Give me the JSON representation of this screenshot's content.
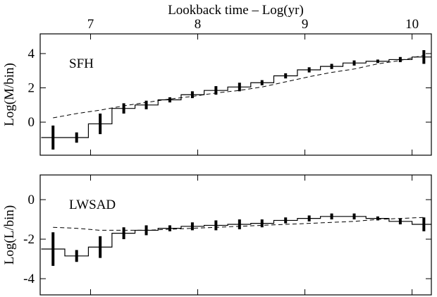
{
  "chart_data": [
    {
      "type": "step",
      "xlabel": "Lookback time – Log(yr)",
      "ylabel": "Log(M/bin)",
      "label": "SFH",
      "x": [
        6.65,
        6.87,
        7.09,
        7.31,
        7.52,
        7.74,
        7.95,
        8.17,
        8.39,
        8.6,
        8.82,
        9.04,
        9.25,
        9.46,
        9.68,
        9.89,
        10.11
      ],
      "values": [
        -0.9,
        -0.9,
        -0.1,
        0.8,
        1.0,
        1.3,
        1.6,
        1.85,
        2.05,
        2.3,
        2.7,
        3.05,
        3.25,
        3.45,
        3.55,
        3.65,
        3.8
      ],
      "errors": [
        0.7,
        0.3,
        0.6,
        0.3,
        0.25,
        0.15,
        0.2,
        0.25,
        0.25,
        0.15,
        0.15,
        0.15,
        0.15,
        0.15,
        0.1,
        0.15,
        0.4
      ],
      "comparison": [
        0.25,
        0.5,
        0.7,
        0.95,
        1.15,
        1.35,
        1.5,
        1.7,
        1.85,
        2.05,
        2.35,
        2.65,
        2.9,
        3.1,
        3.4,
        3.6,
        3.9
      ],
      "xlim": [
        6.53,
        10.18
      ],
      "xticks": [
        7,
        8,
        9,
        10
      ],
      "ylim": [
        -1.93,
        5.15
      ],
      "yticks": [
        0,
        2,
        4
      ]
    },
    {
      "type": "step",
      "ylabel": "Log(L/bin)",
      "label": "LWSAD",
      "x": [
        6.65,
        6.87,
        7.09,
        7.31,
        7.52,
        7.74,
        7.95,
        8.17,
        8.39,
        8.6,
        8.82,
        9.04,
        9.25,
        9.46,
        9.68,
        9.89,
        10.11
      ],
      "values": [
        -2.5,
        -2.85,
        -2.4,
        -1.7,
        -1.55,
        -1.45,
        -1.35,
        -1.3,
        -1.25,
        -1.2,
        -1.05,
        -0.95,
        -0.85,
        -0.85,
        -0.95,
        -1.1,
        -1.25
      ],
      "errors": [
        0.85,
        0.3,
        0.55,
        0.3,
        0.25,
        0.15,
        0.2,
        0.25,
        0.25,
        0.2,
        0.15,
        0.15,
        0.15,
        0.15,
        0.1,
        0.15,
        0.35
      ],
      "comparison": [
        -1.4,
        -1.45,
        -1.55,
        -1.55,
        -1.55,
        -1.5,
        -1.45,
        -1.4,
        -1.35,
        -1.3,
        -1.25,
        -1.2,
        -1.15,
        -1.1,
        -1.0,
        -0.95,
        -0.9
      ],
      "xlim": [
        6.53,
        10.18
      ],
      "xticks": [
        7,
        8,
        9,
        10
      ],
      "ylim": [
        -4.82,
        1.25
      ],
      "yticks": [
        0,
        -2,
        -4
      ]
    }
  ]
}
